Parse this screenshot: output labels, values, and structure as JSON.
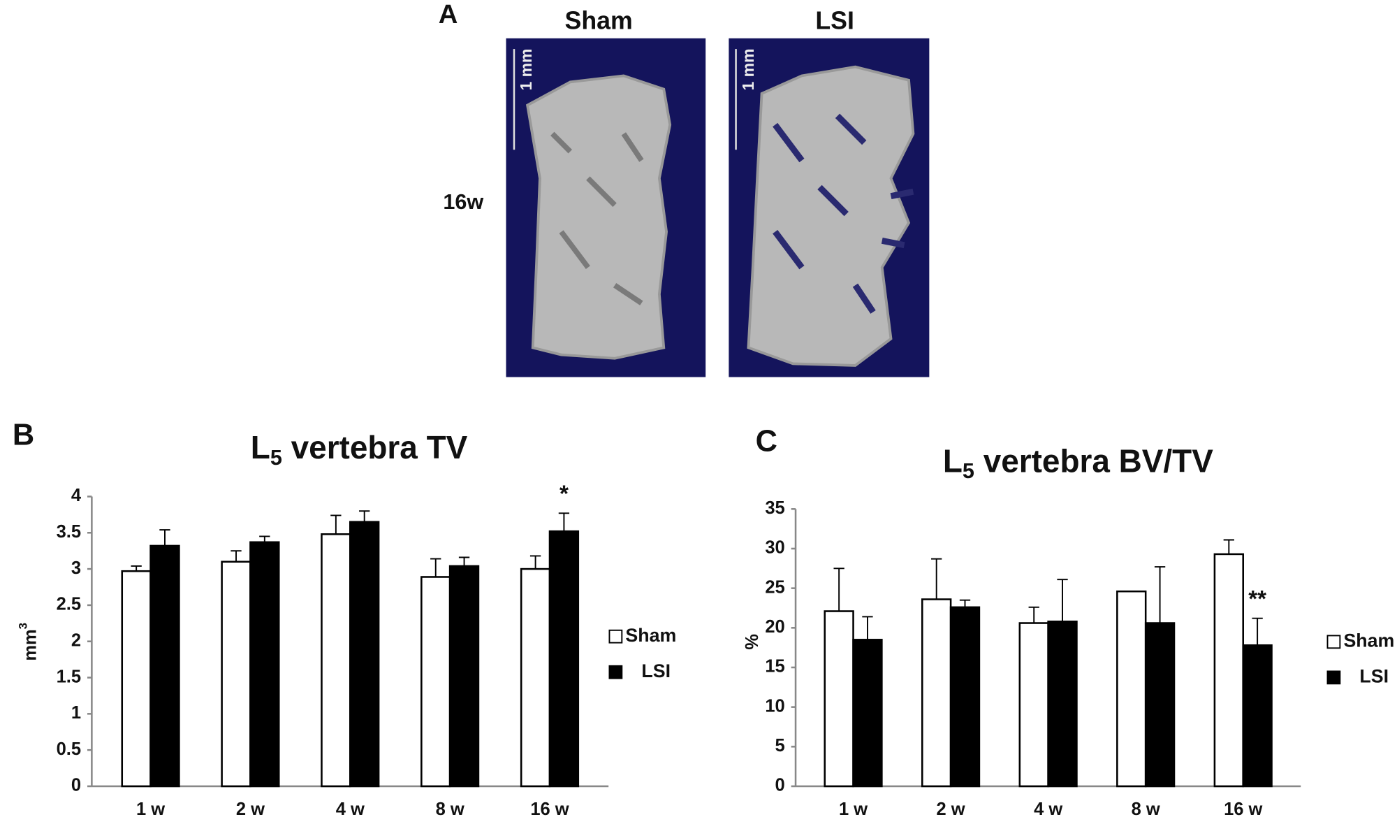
{
  "panel_a": {
    "label": "A",
    "columns": [
      "Sham",
      "LSI"
    ],
    "row": "16w",
    "scale_bar": "1 mm"
  },
  "chart_data": [
    {
      "type": "bar",
      "panel": "B",
      "title": [
        "L",
        "5",
        " vertebra TV"
      ],
      "ylabel": [
        "mm",
        "3"
      ],
      "categories": [
        "1 w",
        "2 w",
        "4 w",
        "8 w",
        "16 w"
      ],
      "series": [
        {
          "name": "Sham",
          "color": "#ffffff",
          "values": [
            2.97,
            3.1,
            3.48,
            2.89,
            3.0
          ],
          "errors": [
            0.07,
            0.15,
            0.26,
            0.25,
            0.18
          ]
        },
        {
          "name": "LSI",
          "color": "#000000",
          "values": [
            3.32,
            3.37,
            3.65,
            3.04,
            3.52
          ],
          "errors": [
            0.22,
            0.08,
            0.15,
            0.12,
            0.25
          ]
        }
      ],
      "ylim": [
        0,
        4
      ],
      "yticks": [
        0,
        0.5,
        1,
        1.5,
        2,
        2.5,
        3,
        3.5,
        4
      ],
      "annotation": "*"
    },
    {
      "type": "bar",
      "panel": "C",
      "title": [
        "L",
        "5",
        " vertebra BV/TV"
      ],
      "ylabel": [
        "%"
      ],
      "categories": [
        "1 w",
        "2 w",
        "4 w",
        "8 w",
        "16 w"
      ],
      "series": [
        {
          "name": "Sham",
          "color": "#ffffff",
          "values": [
            22.1,
            23.6,
            20.6,
            24.6,
            29.3
          ],
          "errors": [
            5.4,
            5.1,
            2.0,
            null,
            1.8
          ]
        },
        {
          "name": "LSI",
          "color": "#000000",
          "values": [
            18.5,
            22.6,
            20.8,
            20.6,
            17.8
          ],
          "errors": [
            2.9,
            0.9,
            5.3,
            7.1,
            3.4
          ]
        }
      ],
      "ylim": [
        0,
        35
      ],
      "yticks": [
        0,
        5,
        10,
        15,
        20,
        25,
        30,
        35
      ],
      "annotation": "**"
    }
  ]
}
